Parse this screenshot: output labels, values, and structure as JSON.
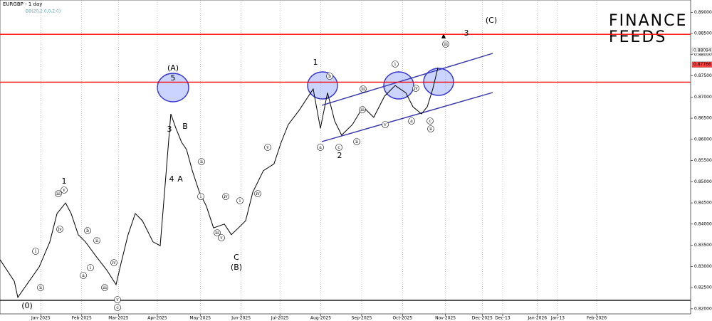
{
  "chart_data": {
    "type": "line",
    "title": "EURGBP - 1 day",
    "subtitle": "BB(20,2.0,0,2.0)",
    "logo": [
      "FINANCE",
      "FEEDS"
    ],
    "series": [
      {
        "name": "EURGBP",
        "color": "#000000",
        "x": [
          0,
          7.0,
          8.7,
          19.2,
          24.4,
          27.9,
          32.1,
          34.8,
          38.3,
          41.8,
          47.0,
          52.3,
          56.8,
          59.2,
          62.7,
          66.2,
          69.7,
          74.9,
          78.4,
          80.8,
          83.6,
          86.1,
          88.9,
          91.3,
          94.1,
          97.6,
          101.0,
          104.5,
          109.8,
          113.2,
          116.7,
          120.2,
          123.7,
          128.9,
          134.1,
          137.6,
          141.1,
          146.3,
          153.3,
          156.8,
          160.3,
          163.8,
          167.2,
          172.5,
          177.7,
          182.9,
          188.2,
          193.4,
          198.6,
          202.1,
          206.3,
          209.1,
          211.8,
          214.3
        ],
        "values": [
          0.8316,
          0.8265,
          0.8227,
          0.8299,
          0.8358,
          0.8425,
          0.845,
          0.8425,
          0.8375,
          0.8358,
          0.8324,
          0.8291,
          0.8257,
          0.8307,
          0.8375,
          0.8425,
          0.8408,
          0.8358,
          0.8349,
          0.8492,
          0.866,
          0.8626,
          0.8593,
          0.8576,
          0.8526,
          0.8475,
          0.8442,
          0.8391,
          0.84,
          0.8375,
          0.8391,
          0.8408,
          0.8475,
          0.8526,
          0.8542,
          0.8593,
          0.8635,
          0.8668,
          0.8719,
          0.8626,
          0.871,
          0.8643,
          0.861,
          0.8635,
          0.8677,
          0.8652,
          0.8702,
          0.8727,
          0.871,
          0.8677,
          0.866,
          0.8677,
          0.8719,
          0.8769
        ]
      }
    ],
    "xlim": [
      0,
      338
    ],
    "xticks": [
      {
        "value": 20,
        "label": "Jan-2025"
      },
      {
        "value": 40,
        "label": "Feb-2025"
      },
      {
        "value": 58,
        "label": "Mar-2025"
      },
      {
        "value": 77,
        "label": "Apr-2025"
      },
      {
        "value": 98,
        "label": "May-2025"
      },
      {
        "value": 118,
        "label": "Jun-2025"
      },
      {
        "value": 137,
        "label": "Jul-2025"
      },
      {
        "value": 157,
        "label": "Aug-2025"
      },
      {
        "value": 177,
        "label": "Sep-2025"
      },
      {
        "value": 197,
        "label": "Oct-2025"
      },
      {
        "value": 218,
        "label": "Nov-2025"
      },
      {
        "value": 236,
        "label": "Dec-2025"
      },
      {
        "value": 246,
        "label": "Dec-13"
      },
      {
        "value": 263,
        "label": "Jan-2026"
      },
      {
        "value": 273,
        "label": "Jan-13"
      },
      {
        "value": 292,
        "label": "Feb-2026"
      }
    ],
    "ylim": [
      0.8188,
      0.8929
    ],
    "yticks": [
      {
        "value": 0.82,
        "label": "0.82000"
      },
      {
        "value": 0.825,
        "label": "0.82500"
      },
      {
        "value": 0.83,
        "label": "0.83000"
      },
      {
        "value": 0.835,
        "label": "0.83500"
      },
      {
        "value": 0.84,
        "label": "0.84000"
      },
      {
        "value": 0.845,
        "label": "0.84500"
      },
      {
        "value": 0.85,
        "label": "0.85000"
      },
      {
        "value": 0.855,
        "label": "0.85500"
      },
      {
        "value": 0.86,
        "label": "0.86000"
      },
      {
        "value": 0.865,
        "label": "0.86500"
      },
      {
        "value": 0.87,
        "label": "0.87000"
      },
      {
        "value": 0.875,
        "label": "0.87500"
      },
      {
        "value": 0.88,
        "label": "0.88000"
      },
      {
        "value": 0.885,
        "label": "0.88500"
      },
      {
        "value": 0.89,
        "label": "0.89000"
      }
    ],
    "hlines": [
      {
        "value": 0.8848,
        "color": "#ff0000"
      },
      {
        "value": 0.8735,
        "color": "#ff0000"
      },
      {
        "value": 0.822,
        "color": "#000000"
      }
    ],
    "price_labels": [
      {
        "value": 0.88094,
        "label": "0.88094",
        "color": "#ffffff"
      },
      {
        "value": 0.87766,
        "label": "0.87766",
        "color": "#ff4040"
      }
    ],
    "wave_labels": [
      "(0)",
      "1",
      "(A)",
      "5",
      "3",
      "B",
      "4",
      "A",
      "C",
      "(B)",
      "1",
      "2",
      "3",
      "(C)"
    ],
    "circled_labels": [
      "i",
      "ii",
      "iii",
      "iv",
      "v",
      "a",
      "b",
      "c",
      "i",
      "ii",
      "iii",
      "iv",
      "v",
      "ii",
      "i",
      "iv",
      "iii",
      "v",
      "i",
      "v",
      "iv",
      "iii",
      "a",
      "b",
      "c",
      "ii",
      "iii",
      "iv",
      "v",
      "i",
      "a",
      "c",
      "ii",
      "iii"
    ]
  }
}
